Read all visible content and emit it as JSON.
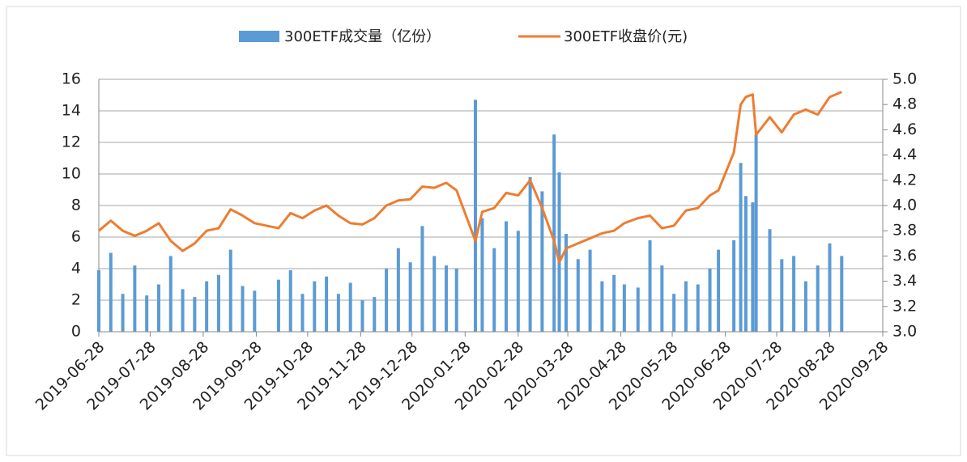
{
  "chart_data": {
    "type": "bar_line",
    "x": [
      "2019-06-28",
      "2019-07-05",
      "2019-07-12",
      "2019-07-19",
      "2019-07-26",
      "2019-08-02",
      "2019-08-09",
      "2019-08-16",
      "2019-08-23",
      "2019-08-30",
      "2019-09-06",
      "2019-09-13",
      "2019-09-20",
      "2019-09-27",
      "2019-10-11",
      "2019-10-18",
      "2019-10-25",
      "2019-11-01",
      "2019-11-08",
      "2019-11-15",
      "2019-11-22",
      "2019-11-29",
      "2019-12-06",
      "2019-12-13",
      "2019-12-20",
      "2019-12-27",
      "2020-01-03",
      "2020-01-10",
      "2020-01-17",
      "2020-01-23",
      "2020-02-03",
      "2020-02-07",
      "2020-02-14",
      "2020-02-21",
      "2020-02-28",
      "2020-03-06",
      "2020-03-13",
      "2020-03-20",
      "2020-03-23",
      "2020-03-27",
      "2020-04-03",
      "2020-04-10",
      "2020-04-17",
      "2020-04-24",
      "2020-04-30",
      "2020-05-08",
      "2020-05-15",
      "2020-05-22",
      "2020-05-29",
      "2020-06-05",
      "2020-06-12",
      "2020-06-19",
      "2020-06-24",
      "2020-07-03",
      "2020-07-07",
      "2020-07-10",
      "2020-07-14",
      "2020-07-16",
      "2020-07-24",
      "2020-07-31",
      "2020-08-07",
      "2020-08-14",
      "2020-08-21",
      "2020-08-28",
      "2020-09-04"
    ],
    "series": [
      {
        "name": "300ETF成交量（亿份）",
        "type": "bar",
        "color": "#5b9bd5",
        "values": [
          3.9,
          5.0,
          2.4,
          4.2,
          2.3,
          3.0,
          4.8,
          2.7,
          2.2,
          3.2,
          3.6,
          5.2,
          2.9,
          2.6,
          3.3,
          3.9,
          2.4,
          3.2,
          3.5,
          2.4,
          3.1,
          2.0,
          2.2,
          4.0,
          5.3,
          4.4,
          6.7,
          4.8,
          4.2,
          4.0,
          14.7,
          7.2,
          5.3,
          7.0,
          6.4,
          9.8,
          8.9,
          12.5,
          10.1,
          6.2,
          4.6,
          5.2,
          3.2,
          3.6,
          3.0,
          2.8,
          5.8,
          4.2,
          2.4,
          3.2,
          3.0,
          4.0,
          5.2,
          5.8,
          10.7,
          8.6,
          8.2,
          12.5,
          6.5,
          4.6,
          4.8,
          3.2,
          4.2,
          5.6,
          4.8
        ]
      },
      {
        "name": "300ETF收盘价(元)",
        "type": "line",
        "axis": "y2",
        "color": "#ed7d31",
        "values": [
          3.8,
          3.88,
          3.8,
          3.76,
          3.8,
          3.86,
          3.72,
          3.64,
          3.7,
          3.8,
          3.82,
          3.97,
          3.92,
          3.86,
          3.82,
          3.94,
          3.9,
          3.96,
          4.0,
          3.92,
          3.86,
          3.85,
          3.9,
          4.0,
          4.04,
          4.05,
          4.15,
          4.14,
          4.18,
          4.12,
          3.72,
          3.95,
          3.98,
          4.1,
          4.08,
          4.2,
          3.98,
          3.72,
          3.55,
          3.66,
          3.7,
          3.74,
          3.78,
          3.8,
          3.86,
          3.9,
          3.92,
          3.82,
          3.84,
          3.96,
          3.98,
          4.08,
          4.12,
          4.42,
          4.8,
          4.86,
          4.88,
          4.56,
          4.7,
          4.58,
          4.72,
          4.76,
          4.72,
          4.86,
          4.9
        ]
      }
    ],
    "xlim": [
      "2019-06-28",
      "2020-09-28"
    ],
    "xticks": [
      "2019-06-28",
      "2019-07-28",
      "2019-08-28",
      "2019-09-28",
      "2019-10-28",
      "2019-11-28",
      "2019-12-28",
      "2020-01-28",
      "2020-02-28",
      "2020-03-28",
      "2020-04-28",
      "2020-05-28",
      "2020-06-28",
      "2020-07-28",
      "2020-08-28",
      "2020-09-28"
    ],
    "ylim": [
      0,
      16
    ],
    "yticks": [
      0,
      2,
      4,
      6,
      8,
      10,
      12,
      14,
      16
    ],
    "y2lim": [
      3,
      5
    ],
    "y2ticks": [
      {
        "value": 3,
        "label": "3.0"
      },
      {
        "value": 3.2,
        "label": "3.2"
      },
      {
        "value": 3.4,
        "label": "3.4"
      },
      {
        "value": 3.6,
        "label": "3.6"
      },
      {
        "value": 3.8,
        "label": "3.8"
      },
      {
        "value": 4,
        "label": "4.0"
      },
      {
        "value": 4.2,
        "label": "4.2"
      },
      {
        "value": 4.4,
        "label": "4.4"
      },
      {
        "value": 4.6,
        "label": "4.6"
      },
      {
        "value": 4.8,
        "label": "4.8"
      },
      {
        "value": 5,
        "label": "5.0"
      }
    ],
    "grid": true,
    "legend": "top"
  }
}
